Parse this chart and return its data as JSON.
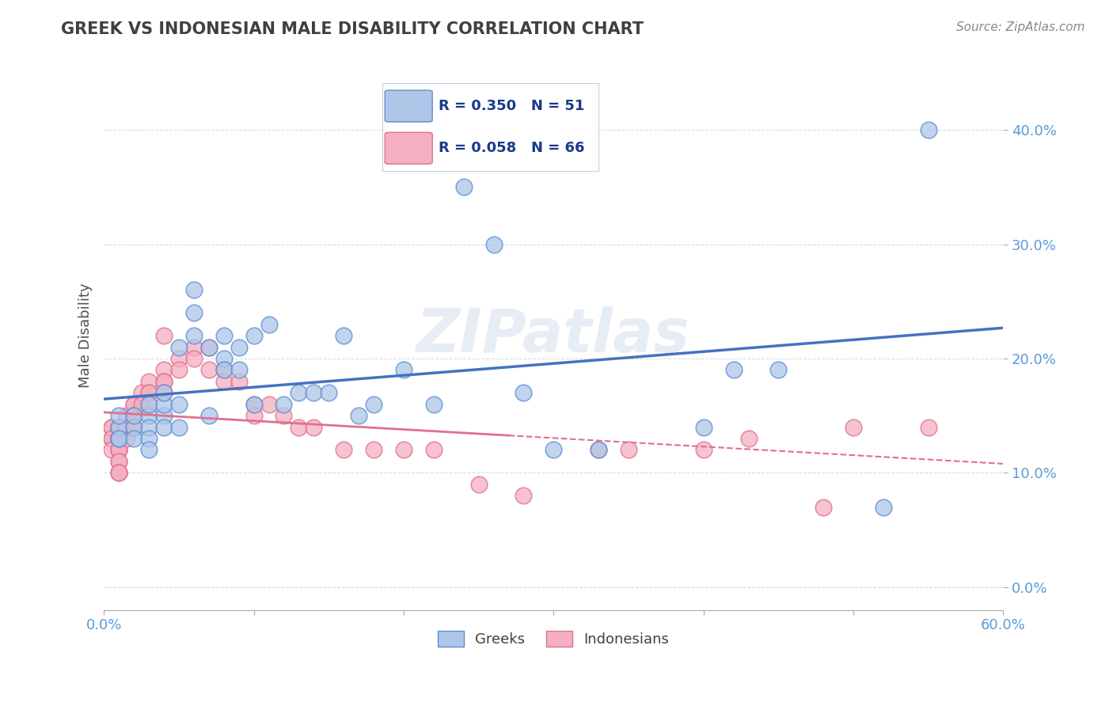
{
  "title": "GREEK VS INDONESIAN MALE DISABILITY CORRELATION CHART",
  "source": "Source: ZipAtlas.com",
  "ylabel": "Male Disability",
  "xlim": [
    0.0,
    0.6
  ],
  "ylim": [
    -0.02,
    0.46
  ],
  "watermark": "ZIPatlas",
  "greek_R": "R = 0.350",
  "greek_N": "N = 51",
  "indonesian_R": "R = 0.058",
  "indonesian_N": "N = 66",
  "greek_color": "#aec6e8",
  "greek_edge_color": "#5b8fd4",
  "greek_line_color": "#4472c4",
  "indonesian_color": "#f4afc0",
  "indonesian_edge_color": "#e07090",
  "indonesian_line_color": "#e07090",
  "legend_box_color": "#e8f0f8",
  "legend_border_color": "#c0d0e8",
  "background_color": "#ffffff",
  "grid_color": "#cccccc",
  "tick_color": "#5b9bd5",
  "greek_scatter_x": [
    0.01,
    0.01,
    0.01,
    0.01,
    0.02,
    0.02,
    0.02,
    0.03,
    0.03,
    0.03,
    0.03,
    0.03,
    0.04,
    0.04,
    0.04,
    0.04,
    0.05,
    0.05,
    0.05,
    0.06,
    0.06,
    0.06,
    0.07,
    0.07,
    0.08,
    0.08,
    0.08,
    0.09,
    0.09,
    0.1,
    0.1,
    0.11,
    0.12,
    0.13,
    0.14,
    0.15,
    0.16,
    0.17,
    0.18,
    0.2,
    0.22,
    0.24,
    0.26,
    0.28,
    0.3,
    0.33,
    0.4,
    0.42,
    0.45,
    0.52,
    0.55
  ],
  "greek_scatter_y": [
    0.13,
    0.14,
    0.15,
    0.13,
    0.14,
    0.15,
    0.13,
    0.15,
    0.16,
    0.14,
    0.13,
    0.12,
    0.15,
    0.16,
    0.17,
    0.14,
    0.21,
    0.14,
    0.16,
    0.24,
    0.26,
    0.22,
    0.21,
    0.15,
    0.2,
    0.19,
    0.22,
    0.19,
    0.21,
    0.16,
    0.22,
    0.23,
    0.16,
    0.17,
    0.17,
    0.17,
    0.22,
    0.15,
    0.16,
    0.19,
    0.16,
    0.35,
    0.3,
    0.17,
    0.12,
    0.12,
    0.14,
    0.19,
    0.19,
    0.07,
    0.4
  ],
  "indonesian_scatter_x": [
    0.005,
    0.005,
    0.005,
    0.005,
    0.005,
    0.01,
    0.01,
    0.01,
    0.01,
    0.01,
    0.01,
    0.01,
    0.01,
    0.01,
    0.01,
    0.01,
    0.01,
    0.01,
    0.015,
    0.015,
    0.015,
    0.02,
    0.02,
    0.02,
    0.02,
    0.02,
    0.02,
    0.025,
    0.025,
    0.03,
    0.03,
    0.03,
    0.03,
    0.04,
    0.04,
    0.04,
    0.04,
    0.04,
    0.05,
    0.05,
    0.06,
    0.06,
    0.07,
    0.07,
    0.08,
    0.08,
    0.09,
    0.1,
    0.1,
    0.11,
    0.12,
    0.13,
    0.14,
    0.16,
    0.18,
    0.2,
    0.22,
    0.25,
    0.28,
    0.33,
    0.35,
    0.4,
    0.43,
    0.48,
    0.5,
    0.55
  ],
  "indonesian_scatter_y": [
    0.13,
    0.14,
    0.14,
    0.13,
    0.12,
    0.14,
    0.14,
    0.13,
    0.13,
    0.13,
    0.12,
    0.12,
    0.12,
    0.11,
    0.11,
    0.1,
    0.1,
    0.1,
    0.15,
    0.14,
    0.13,
    0.16,
    0.16,
    0.15,
    0.15,
    0.14,
    0.14,
    0.17,
    0.16,
    0.18,
    0.17,
    0.17,
    0.16,
    0.19,
    0.18,
    0.18,
    0.17,
    0.22,
    0.2,
    0.19,
    0.21,
    0.2,
    0.21,
    0.19,
    0.19,
    0.18,
    0.18,
    0.16,
    0.15,
    0.16,
    0.15,
    0.14,
    0.14,
    0.12,
    0.12,
    0.12,
    0.12,
    0.09,
    0.08,
    0.12,
    0.12,
    0.12,
    0.13,
    0.07,
    0.14,
    0.14
  ],
  "yticks": [
    0.0,
    0.1,
    0.2,
    0.3,
    0.4
  ],
  "ytick_labels": [
    "0.0%",
    "10.0%",
    "20.0%",
    "30.0%",
    "40.0%"
  ],
  "xtick_labels_show": [
    "0.0%",
    "60.0%"
  ],
  "xtick_positions_show": [
    0.0,
    0.6
  ],
  "xtick_minor": [
    0.1,
    0.2,
    0.3,
    0.4,
    0.5
  ]
}
